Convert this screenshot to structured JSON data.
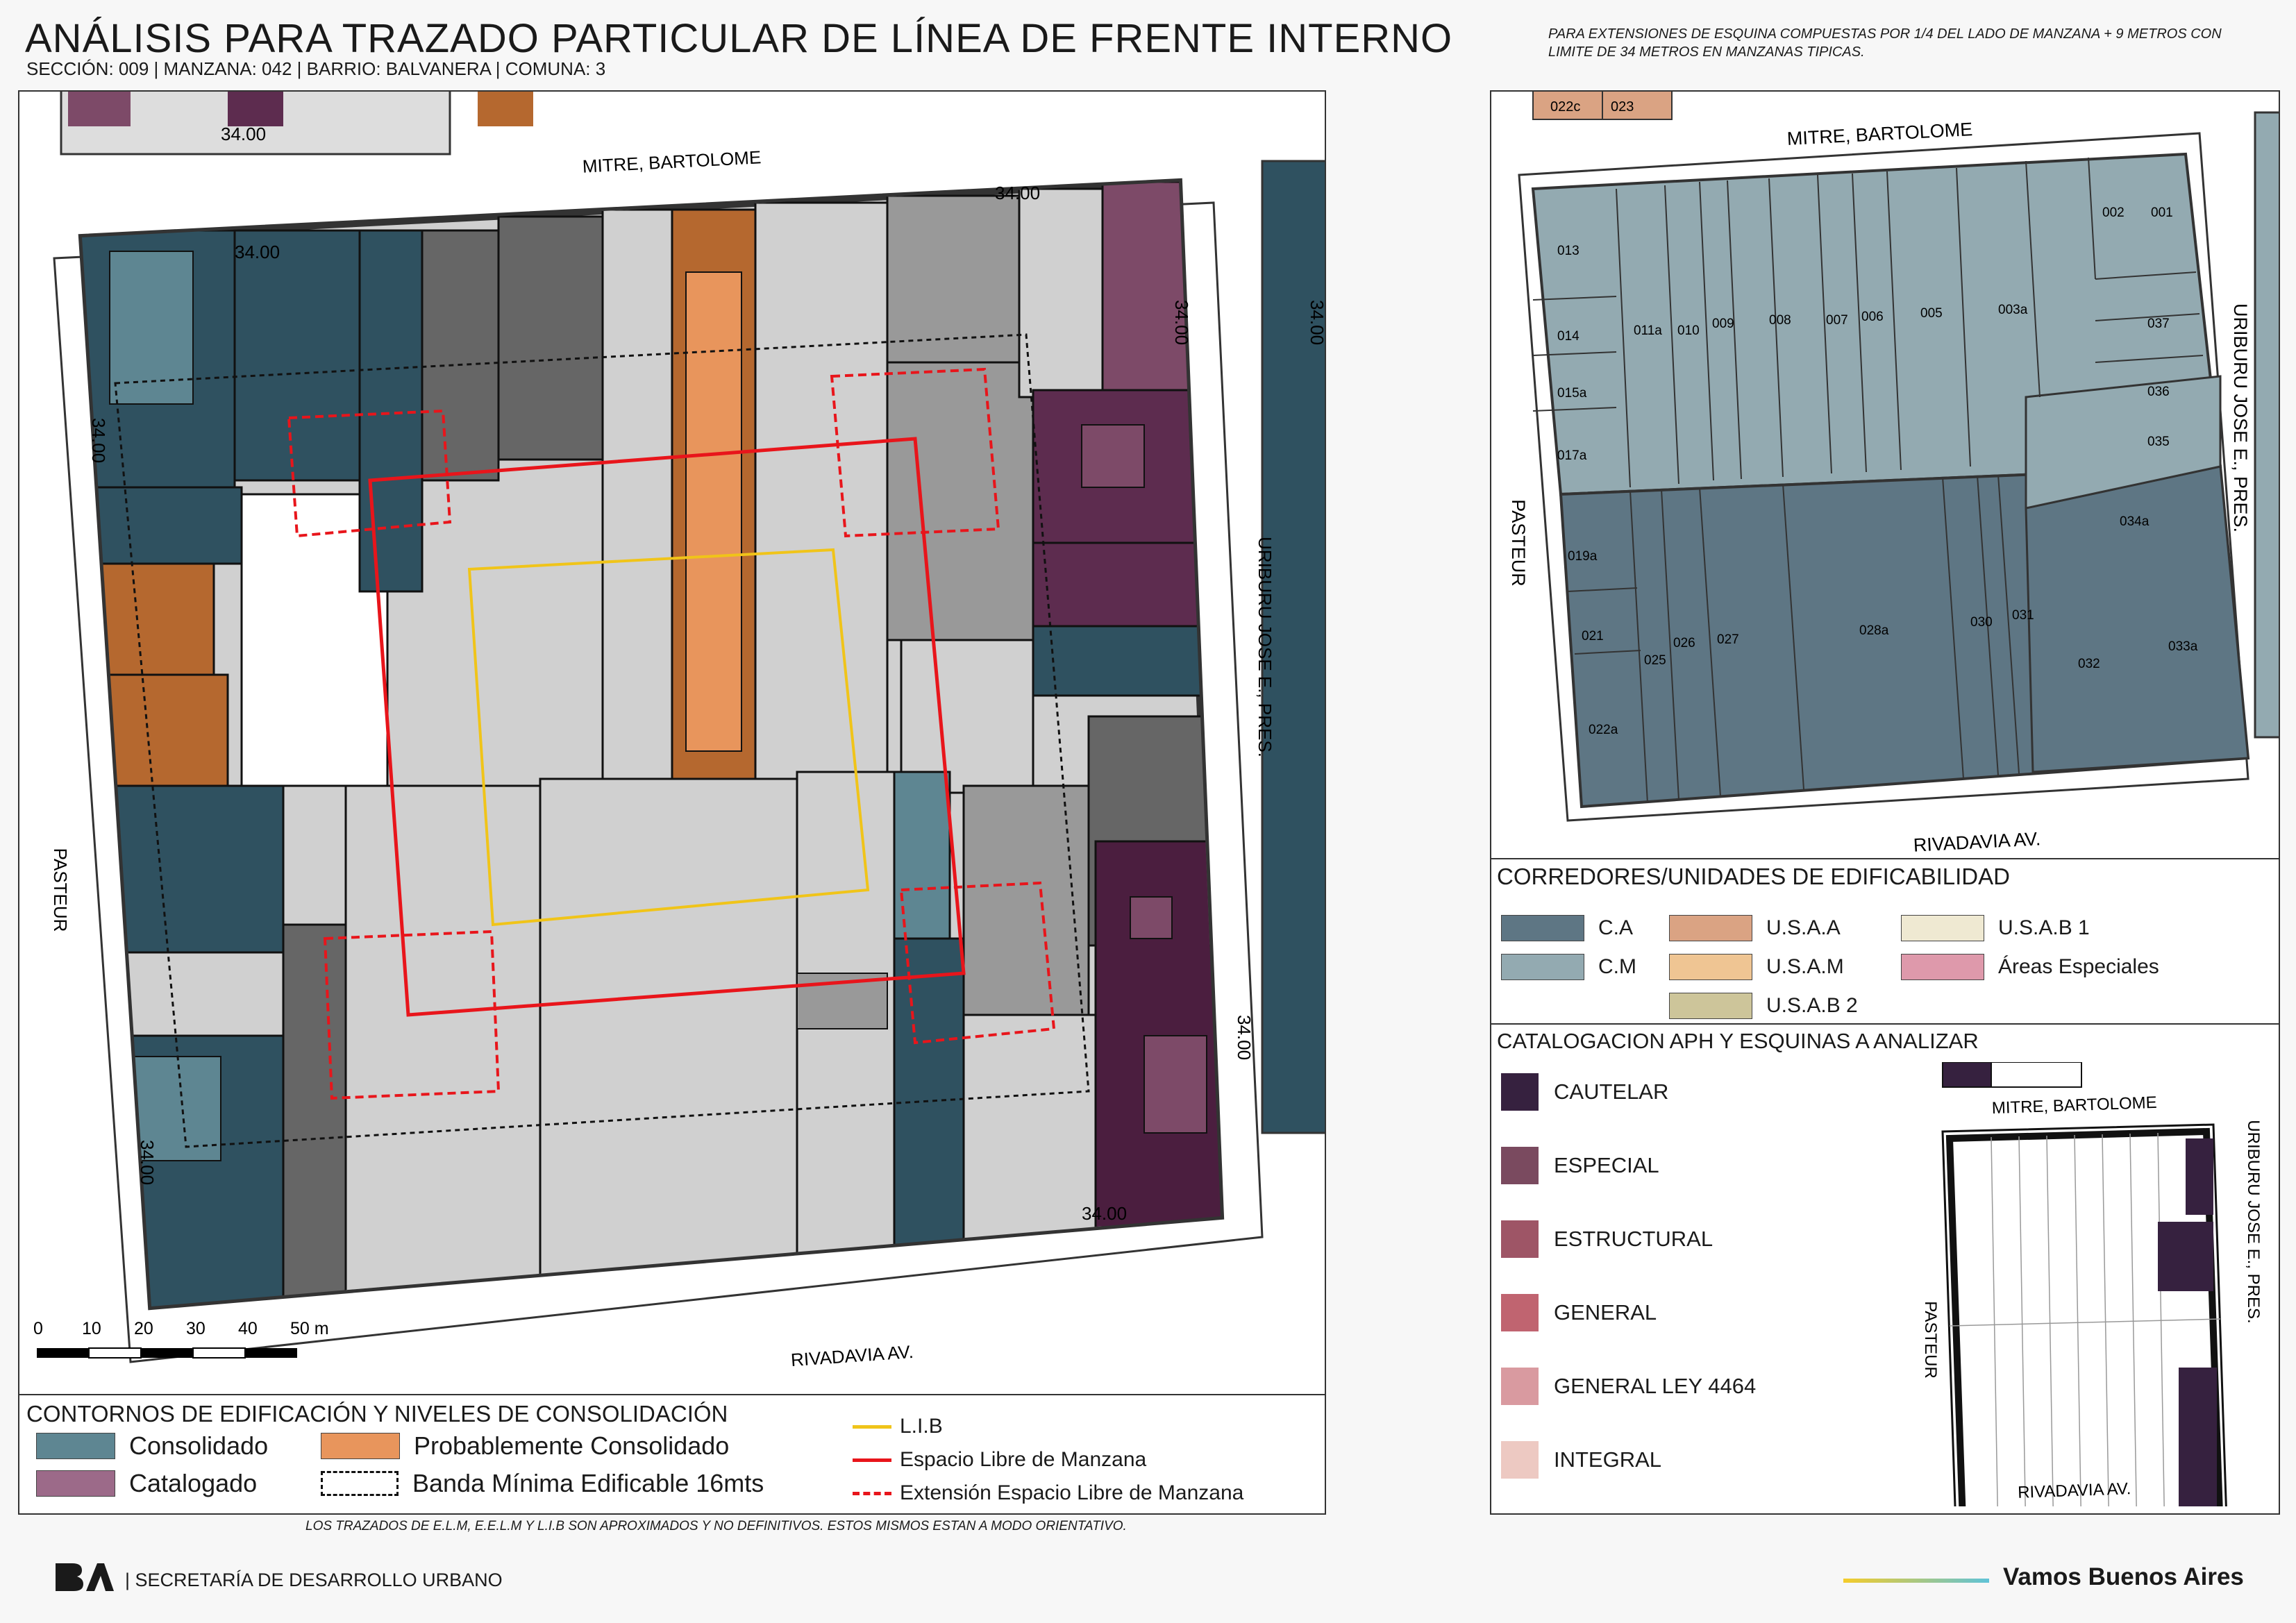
{
  "header": {
    "title": "ANÁLISIS PARA TRAZADO PARTICULAR DE LÍNEA DE FRENTE INTERNO",
    "subtitle": "SECCIÓN: 009 |  MANZANA: 042 | BARRIO: BALVANERA | COMUNA: 3",
    "note": "PARA EXTENSIONES DE ESQUINA COMPUESTAS POR 1/4 DEL LADO DE MANZANA + 9 METROS CON LIMITE DE 34 METROS EN MANZANAS TIPICAS."
  },
  "colors": {
    "consolidado": "#5e8692",
    "consolidado_dark": "#2f5160",
    "catalogado": "#7d4a68",
    "catalogado_dark": "#4b1e3f",
    "probablemente": "#b5682f",
    "probablemente_light": "#e8955c",
    "lib": "#f0c419",
    "elm": "#e8151b",
    "ca": "#5e7684",
    "cm": "#93aab1",
    "usaa": "#daa383",
    "usam": "#efc593",
    "usab1": "#efe9d2",
    "usab2": "#cdc59a",
    "areas_especiales": "#de99ab"
  },
  "main_map": {
    "streets": {
      "top": "MITRE, BARTOLOME",
      "left": "PASTEUR",
      "right": "URIBURU JOSE E., PRES.",
      "bottom": "RIVADAVIA AV."
    },
    "dimension_labels": [
      "34.00",
      "34.00",
      "34.00",
      "34.00",
      "34.00",
      "34.00",
      "34.00",
      "34.00",
      "34.00"
    ],
    "scale": {
      "ticks": [
        "0",
        "10",
        "20",
        "30",
        "40",
        "50 m"
      ]
    },
    "legend": {
      "title": "CONTORNOS DE EDIFICACIÓN Y NIVELES DE CONSOLIDACIÓN",
      "items": [
        "Consolidado",
        "Catalogado",
        "Probablemente Consolidado",
        "Banda Mínima Edificable 16mts",
        "L.I.B",
        "Espacio Libre de Manzana",
        "Extensión Espacio Libre de Manzana"
      ]
    }
  },
  "parcel_map": {
    "streets": {
      "top": "MITRE, BARTOLOME",
      "left": "PASTEUR",
      "right": "URIBURU JOSE E., PRES.",
      "bottom": "RIVADAVIA AV."
    },
    "top_lots": [
      "022c",
      "023"
    ],
    "parcels": [
      "013",
      "014",
      "015a",
      "017a",
      "019a",
      "021",
      "022a",
      "011a",
      "010",
      "009",
      "008",
      "007",
      "006",
      "005",
      "003a",
      "002",
      "001",
      "037",
      "036",
      "035",
      "034a",
      "025",
      "026",
      "027",
      "028a",
      "030",
      "031",
      "032",
      "033a"
    ]
  },
  "corredores": {
    "title": "CORREDORES/UNIDADES DE EDIFICABILIDAD",
    "items": [
      "C.A",
      "C.M",
      "U.S.A.A",
      "U.S.A.M",
      "U.S.A.B 2",
      "U.S.A.B 1",
      "Áreas Especiales"
    ]
  },
  "catalogacion": {
    "title": "CATALOGACION APH Y ESQUINAS A ANALIZAR",
    "items": [
      {
        "label": "CAUTELAR",
        "color": "#36213f"
      },
      {
        "label": "ESPECIAL",
        "color": "#7a4a5f"
      },
      {
        "label": "ESTRUCTURAL",
        "color": "#9e5566"
      },
      {
        "label": "GENERAL",
        "color": "#c06470"
      },
      {
        "label": "GENERAL LEY 4464",
        "color": "#d99aa0"
      },
      {
        "label": "INTEGRAL",
        "color": "#edc9c2"
      }
    ],
    "mini_map_streets": {
      "top": "MITRE, BARTOLOME",
      "left": "PASTEUR",
      "right": "URIBURU JOSE E., PRES.",
      "bottom": "RIVADAVIA AV."
    }
  },
  "footer": {
    "note": "LOS TRAZADOS DE E.L.M, E.E.L.M Y L.I.B SON APROXIMADOS Y NO DEFINITIVOS. ESTOS MISMOS ESTAN A MODO ORIENTATIVO.",
    "logo": "BA",
    "secretaria": "| SECRETARÍA DE DESARROLLO URBANO",
    "brand": "Vamos Buenos Aires"
  }
}
